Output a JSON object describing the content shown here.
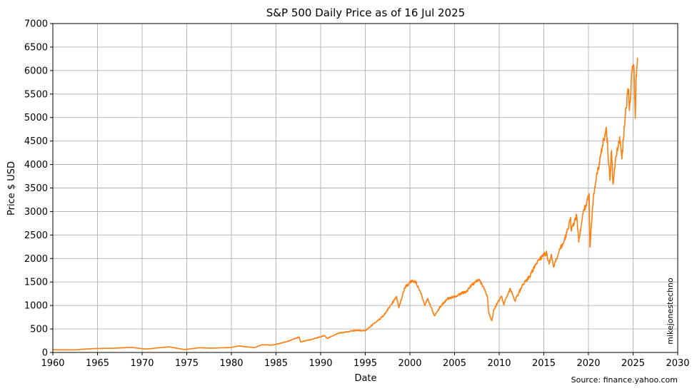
{
  "chart_data": {
    "type": "line",
    "title": "S&P 500 Daily Price as of 16 Jul 2025",
    "xlabel": "Date",
    "ylabel": "Price $ USD",
    "xlim": [
      "1960",
      "2030"
    ],
    "ylim": [
      0,
      7000
    ],
    "xticks": [
      "1960",
      "1965",
      "1970",
      "1975",
      "1980",
      "1985",
      "1990",
      "1995",
      "2000",
      "2005",
      "2010",
      "2015",
      "2020",
      "2025",
      "2030"
    ],
    "yticks": [
      "0",
      "500",
      "1000",
      "1500",
      "2000",
      "2500",
      "3000",
      "3500",
      "4000",
      "4500",
      "5000",
      "5500",
      "6000",
      "6500",
      "7000"
    ],
    "grid": true,
    "line_color": "#ff7f0e",
    "series": [
      {
        "x": [
          "1960-01",
          "1962-06",
          "1963-06",
          "1965-01",
          "1966-10",
          "1968-11",
          "1970-06",
          "1973-01",
          "1974-10",
          "1976-06",
          "1977-12",
          "1980-01",
          "1980-11",
          "1982-08",
          "1983-06",
          "1984-07",
          "1985-06",
          "1986-06",
          "1987-08",
          "1987-10",
          "1988-12",
          "1990-06",
          "1990-10",
          "1992-01",
          "1994-01",
          "1995-01",
          "1996-01",
          "1997-01",
          "1998-07",
          "1998-10",
          "1999-06",
          "2000-03",
          "2000-09",
          "2001-04",
          "2001-09",
          "2002-01",
          "2002-10",
          "2003-06",
          "2004-03",
          "2005-01",
          "2006-05",
          "2007-01",
          "2007-10",
          "2008-06",
          "2008-09",
          "2008-11",
          "2009-03",
          "2009-06",
          "2010-04",
          "2010-07",
          "2011-04",
          "2011-10",
          "2012-09",
          "2013-06",
          "2014-01",
          "2014-11",
          "2015-05",
          "2015-08",
          "2015-11",
          "2016-02",
          "2016-11",
          "2017-06",
          "2018-01",
          "2018-02",
          "2018-09",
          "2018-12",
          "2019-05",
          "2019-07",
          "2020-02",
          "2020-03",
          "2020-08",
          "2021-01",
          "2021-06",
          "2022-01",
          "2022-06",
          "2022-08",
          "2022-10",
          "2023-02",
          "2023-07",
          "2023-10",
          "2024-03",
          "2024-07",
          "2024-08",
          "2024-12",
          "2025-02",
          "2025-04",
          "2025-05",
          "2025-07"
        ],
        "y": [
          58,
          55,
          70,
          86,
          90,
          108,
          72,
          120,
          62,
          100,
          92,
          107,
          140,
          102,
          165,
          155,
          190,
          245,
          330,
          225,
          275,
          360,
          300,
          410,
          470,
          460,
          620,
          770,
          1190,
          950,
          1380,
          1520,
          1500,
          1250,
          1000,
          1150,
          780,
          980,
          1140,
          1190,
          1300,
          1440,
          1560,
          1320,
          1200,
          850,
          680,
          920,
          1200,
          1020,
          1360,
          1100,
          1450,
          1620,
          1840,
          2050,
          2120,
          1880,
          2090,
          1830,
          2200,
          2450,
          2870,
          2580,
          2930,
          2350,
          2900,
          3020,
          3380,
          2240,
          3380,
          3800,
          4250,
          4790,
          3660,
          4300,
          3580,
          4180,
          4590,
          4120,
          5200,
          5600,
          5150,
          6090,
          6100,
          4980,
          5900,
          6270
        ]
      }
    ],
    "annotations": {
      "watermark": "mikejonestechno",
      "source": "Source: finance.yahoo.com"
    }
  }
}
